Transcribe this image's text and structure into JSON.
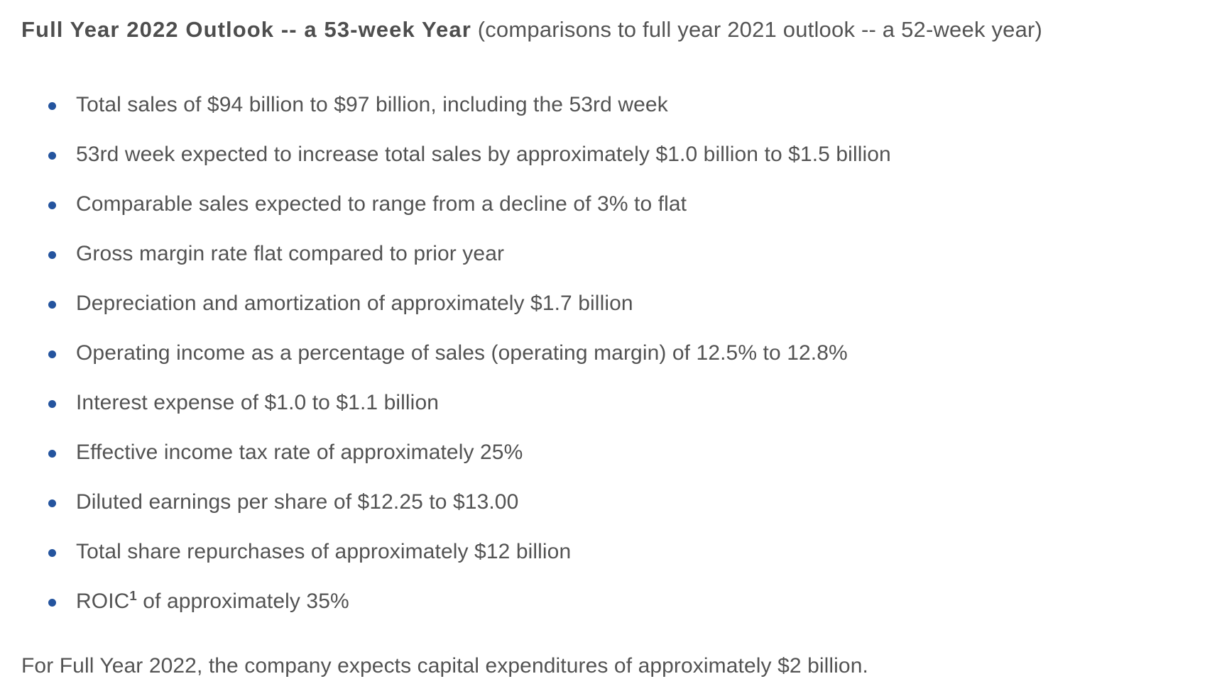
{
  "page": {
    "heading": {
      "bold": "Full Year 2022 Outlook -- a 53-week Year",
      "regular": " (comparisons to full year 2021 outlook -- a 52-week year)"
    },
    "bullets": [
      "Total sales of $94 billion to $97 billion, including the 53rd week",
      "53rd week expected to increase total sales by approximately $1.0 billion to $1.5 billion",
      "Comparable sales expected to range from a decline of 3% to flat",
      "Gross margin rate flat compared to prior year",
      "Depreciation and amortization of approximately $1.7 billion",
      "Operating income as a percentage of sales (operating margin) of 12.5% to 12.8%",
      "Interest expense of $1.0 to $1.1 billion",
      "Effective income tax rate of approximately 25%",
      "Diluted earnings per share of $12.25 to $13.00",
      "Total share repurchases of approximately $12 billion"
    ],
    "roic_bullet": {
      "text": "ROIC",
      "superscript": "1",
      "text_after": " of approximately 35%"
    },
    "footer": "For Full Year 2022, the company expects capital expenditures of approximately $2 billion.",
    "colors": {
      "body_text": "#535353",
      "heading_text": "#4e4e4e",
      "bullet_marker": "#24549e"
    }
  }
}
